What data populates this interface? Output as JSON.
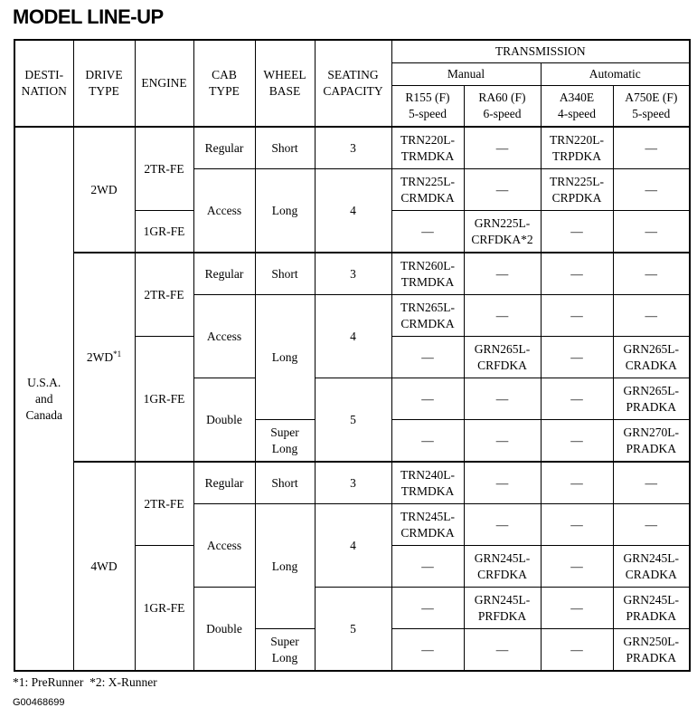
{
  "title": "MODEL LINE-UP",
  "headers": {
    "destination": "DESTI-NATION",
    "drive": "DRIVE TYPE",
    "engine": "ENGINE",
    "cab": "CAB TYPE",
    "wheel": "WHEEL BASE",
    "seating": "SEATING CAPACITY",
    "transmission": "TRANSMISSION",
    "manual": "Manual",
    "automatic": "Automatic",
    "trans_cols": [
      {
        "name": "R155 (F)",
        "speed": "5-speed"
      },
      {
        "name": "RA60 (F)",
        "speed": "6-speed"
      },
      {
        "name": "A340E",
        "speed": "4-speed"
      },
      {
        "name": "A750E (F)",
        "speed": "5-speed"
      }
    ]
  },
  "destination": "U.S.A. and Canada",
  "drive": [
    {
      "label": "2WD",
      "note": ""
    },
    {
      "label": "2WD",
      "note": "*1"
    },
    {
      "label": "4WD",
      "note": ""
    }
  ],
  "engine": [
    "2TR-FE",
    "1GR-FE",
    "2TR-FE",
    "1GR-FE",
    "2TR-FE",
    "1GR-FE"
  ],
  "cab": [
    "Regular",
    "Access",
    "Regular",
    "Access",
    "Double",
    "Regular",
    "Access",
    "Double"
  ],
  "wheel": [
    "Short",
    "Long",
    "Short",
    "Long",
    "Super Long",
    "Short",
    "Long",
    "Super Long"
  ],
  "seating": [
    "3",
    "4",
    "3",
    "4",
    "5",
    "3",
    "4",
    "5"
  ],
  "models": [
    [
      "TRN220L-TRMDKA",
      "—",
      "TRN220L-TRPDKA",
      "—"
    ],
    [
      "TRN225L-CRMDKA",
      "—",
      "TRN225L-CRPDKA",
      "—"
    ],
    [
      "—",
      "GRN225L-CRFDKA*2",
      "—",
      "—"
    ],
    [
      "TRN260L-TRMDKA",
      "—",
      "—",
      "—"
    ],
    [
      "TRN265L-CRMDKA",
      "—",
      "—",
      "—"
    ],
    [
      "—",
      "GRN265L-CRFDKA",
      "—",
      "GRN265L-CRADKA"
    ],
    [
      "—",
      "—",
      "—",
      "GRN265L-PRADKA"
    ],
    [
      "—",
      "—",
      "—",
      "GRN270L-PRADKA"
    ],
    [
      "TRN240L-TRMDKA",
      "—",
      "—",
      "—"
    ],
    [
      "TRN245L-CRMDKA",
      "—",
      "—",
      "—"
    ],
    [
      "—",
      "GRN245L-CRFDKA",
      "—",
      "GRN245L-CRADKA"
    ],
    [
      "—",
      "GRN245L-PRFDKA",
      "—",
      "GRN245L-PRADKA"
    ],
    [
      "—",
      "—",
      "—",
      "GRN250L-PRADKA"
    ]
  ],
  "footnote": "*1: PreRunner  *2: X-Runner",
  "figure_code": "G00468699"
}
